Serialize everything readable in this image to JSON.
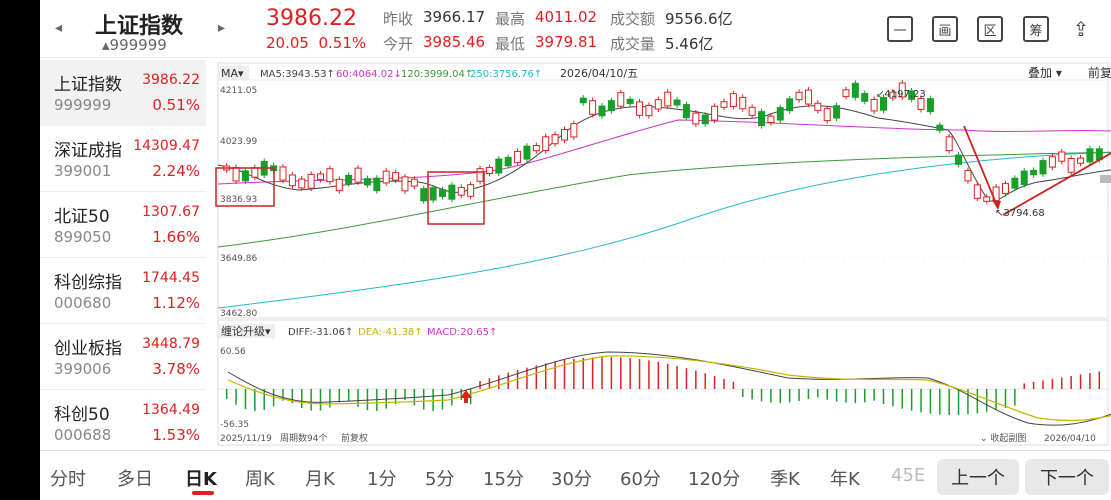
{
  "header": {
    "index_name": "上证指数",
    "index_code": "999999",
    "price": "3986.22",
    "change": "20.05",
    "change_pct": "0.51%",
    "prev_close_label": "昨收",
    "prev_close": "3966.17",
    "open_label": "今开",
    "open": "3985.46",
    "high_label": "最高",
    "high": "4011.02",
    "low_label": "最低",
    "low": "3979.81",
    "amount_label": "成交额",
    "amount": "9556.6亿",
    "volume_label": "成交量",
    "volume": "5.46亿",
    "icons": [
      "minus-icon",
      "window-icon",
      "region-icon",
      "fund-icon",
      "share-icon"
    ],
    "icon_chars": [
      "一",
      "画",
      "区",
      "筹",
      "⇪"
    ]
  },
  "sidebar": {
    "items": [
      {
        "name": "上证指数",
        "code": "999999",
        "price": "3986.22",
        "pct": "0.51%"
      },
      {
        "name": "深证成指",
        "code": "399001",
        "price": "14309.47",
        "pct": "2.24%"
      },
      {
        "name": "北证50",
        "code": "899050",
        "price": "1307.67",
        "pct": "1.66%"
      },
      {
        "name": "科创综指",
        "code": "000680",
        "price": "1744.45",
        "pct": "1.12%"
      },
      {
        "name": "创业板指",
        "code": "399006",
        "price": "3448.79",
        "pct": "3.78%"
      },
      {
        "name": "科创50",
        "code": "000688",
        "price": "1364.49",
        "pct": "1.53%"
      }
    ]
  },
  "chart": {
    "ma_selector": "MA▾",
    "ma5": "MA5:3943.53↑",
    "ma60": "60:4064.02↓",
    "ma120": "120:3999.04↑",
    "ma250": "250:3756.76↑",
    "date": "2026/04/10/五",
    "overlay_btn": "叠加 ▾",
    "adjust_btn": "前复权▾",
    "y_labels": [
      "4211.05",
      "4023.99",
      "3836.93",
      "3649.86",
      "3462.80"
    ],
    "high_mark": "4197.23",
    "low_mark": "3794.68",
    "macd_selector": "缠论升级▾",
    "diff": "DIFF:-31.06↑",
    "dea": "DEA:-41.38↑",
    "macd": "MACD:20.65↑",
    "macd_top": "60.56",
    "macd_bottom": "-56.35",
    "start_date": "2025/11/19",
    "period_label": "周期数94个",
    "fq_label": "前复权",
    "collapse_label": "⌄ 收起副图",
    "end_date": "2026/04/10",
    "colors": {
      "up": "#e02020",
      "down": "#1a9e2a",
      "ma5": "#444444",
      "ma60": "#cc33cc",
      "ma120": "#3a9a3a",
      "ma250": "#22b8cc",
      "dea": "#c8b400"
    }
  },
  "periods": {
    "tabs": [
      "分时",
      "多日",
      "日K",
      "周K",
      "月K",
      "1分",
      "5分",
      "15分",
      "30分",
      "60分",
      "120分",
      "季K",
      "年K",
      "45E"
    ],
    "active": "日K",
    "prev_btn": "上一个",
    "next_btn": "下一个"
  }
}
